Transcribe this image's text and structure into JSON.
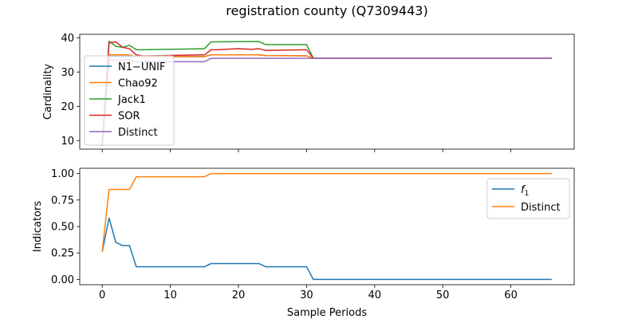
{
  "figure_title": "registration county (Q7309443)",
  "chart_data": [
    {
      "type": "line",
      "title": "",
      "xlabel": "",
      "ylabel": "Cardinality",
      "xlim": [
        -3.3,
        69.3
      ],
      "ylim": [
        7.5,
        41
      ],
      "x_ticks": [
        0,
        10,
        20,
        30,
        40,
        50,
        60
      ],
      "x_ticklabels_visible": false,
      "y_ticks": [
        10,
        20,
        30,
        40
      ],
      "grid": false,
      "legend_position": "left",
      "series": [
        {
          "name": "N1−UNIF",
          "color": "#1f77b4",
          "points": [
            [
              0,
              8.5
            ],
            [
              1,
              34.5
            ],
            [
              2,
              34.5
            ],
            [
              3,
              34.5
            ],
            [
              4,
              34.5
            ],
            [
              5,
              34.5
            ],
            [
              6,
              34.5
            ],
            [
              15,
              34.5
            ],
            [
              16,
              35.0
            ],
            [
              23,
              35.0
            ],
            [
              24,
              34.8
            ],
            [
              30,
              34.7
            ],
            [
              31,
              34.0
            ],
            [
              66,
              34.0
            ]
          ]
        },
        {
          "name": "Chao92",
          "color": "#ff7f0e",
          "points": [
            [
              0,
              8.5
            ],
            [
              1,
              35.0
            ],
            [
              2,
              35.0
            ],
            [
              3,
              35.0
            ],
            [
              4,
              35.0
            ],
            [
              5,
              34.5
            ],
            [
              6,
              34.5
            ],
            [
              15,
              34.5
            ],
            [
              16,
              35.0
            ],
            [
              23,
              35.0
            ],
            [
              24,
              34.8
            ],
            [
              30,
              34.7
            ],
            [
              31,
              34.0
            ],
            [
              66,
              34.0
            ]
          ]
        },
        {
          "name": "Jack1",
          "color": "#2ca02c",
          "points": [
            [
              0,
              8.5
            ],
            [
              1,
              39.0
            ],
            [
              2,
              37.5
            ],
            [
              3,
              37.2
            ],
            [
              4,
              37.8
            ],
            [
              5,
              36.5
            ],
            [
              6,
              36.5
            ],
            [
              15,
              36.8
            ],
            [
              16,
              38.8
            ],
            [
              23,
              38.9
            ],
            [
              24,
              38.0
            ],
            [
              30,
              38.0
            ],
            [
              31,
              34.0
            ],
            [
              66,
              34.0
            ]
          ]
        },
        {
          "name": "SOR",
          "color": "#d62728",
          "points": [
            [
              0,
              8.5
            ],
            [
              1,
              38.5
            ],
            [
              2,
              38.8
            ],
            [
              3,
              37.2
            ],
            [
              4,
              36.8
            ],
            [
              5,
              35.0
            ],
            [
              6,
              34.7
            ],
            [
              15,
              35.0
            ],
            [
              16,
              36.5
            ],
            [
              17,
              36.5
            ],
            [
              18,
              36.6
            ],
            [
              20,
              36.8
            ],
            [
              21,
              36.7
            ],
            [
              22,
              36.6
            ],
            [
              23,
              36.8
            ],
            [
              24,
              36.3
            ],
            [
              30,
              36.5
            ],
            [
              31,
              34.0
            ],
            [
              66,
              34.0
            ]
          ]
        },
        {
          "name": "Distinct",
          "color": "#9467bd",
          "points": [
            [
              0,
              8.5
            ],
            [
              1,
              33.5
            ],
            [
              2,
              33.5
            ],
            [
              3,
              33.5
            ],
            [
              4,
              33.5
            ],
            [
              5,
              33.0
            ],
            [
              15,
              33.0
            ],
            [
              16,
              34.0
            ],
            [
              66,
              34.0
            ]
          ]
        }
      ]
    },
    {
      "type": "line",
      "title": "",
      "xlabel": "Sample Periods",
      "ylabel": "Indicators",
      "xlim": [
        -3.3,
        69.3
      ],
      "ylim": [
        -0.05,
        1.05
      ],
      "x_ticks": [
        0,
        10,
        20,
        30,
        40,
        50,
        60
      ],
      "y_ticks": [
        0.0,
        0.25,
        0.5,
        0.75,
        1.0
      ],
      "y_ticklabels": [
        "0.00",
        "0.25",
        "0.50",
        "0.75",
        "1.00"
      ],
      "grid": false,
      "legend_position": "top-right",
      "series": [
        {
          "name": "f1",
          "color": "#1f77b4",
          "points": [
            [
              0,
              0.26
            ],
            [
              1,
              0.58
            ],
            [
              2,
              0.35
            ],
            [
              3,
              0.32
            ],
            [
              4,
              0.32
            ],
            [
              5,
              0.12
            ],
            [
              6,
              0.12
            ],
            [
              15,
              0.12
            ],
            [
              16,
              0.15
            ],
            [
              23,
              0.15
            ],
            [
              24,
              0.12
            ],
            [
              30,
              0.12
            ],
            [
              31,
              0.0
            ],
            [
              66,
              0.0
            ]
          ]
        },
        {
          "name": "Distinct",
          "color": "#ff7f0e",
          "points": [
            [
              0,
              0.26
            ],
            [
              1,
              0.85
            ],
            [
              2,
              0.85
            ],
            [
              3,
              0.85
            ],
            [
              4,
              0.85
            ],
            [
              5,
              0.97
            ],
            [
              6,
              0.97
            ],
            [
              15,
              0.97
            ],
            [
              16,
              1.0
            ],
            [
              66,
              1.0
            ]
          ]
        }
      ]
    }
  ]
}
